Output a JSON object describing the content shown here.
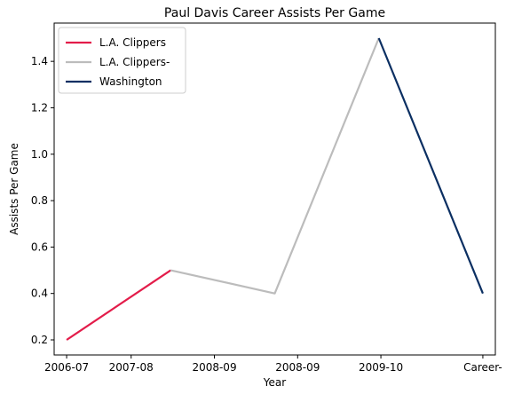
{
  "chart_data": {
    "type": "line",
    "title": "Paul Davis  Career Assists Per Game",
    "xlabel": "Year",
    "ylabel": "Assists Per Game",
    "x_tick_labels": [
      "2006-07",
      "2007-08",
      "2008-09",
      "2008-09",
      "2009-10",
      "Career-"
    ],
    "y_tick_labels": [
      "0.2",
      "0.4",
      "0.6",
      "0.8",
      "1.0",
      "1.2",
      "1.4"
    ],
    "y_ticks": [
      0.2,
      0.4,
      0.6,
      0.8,
      1.0,
      1.2,
      1.4
    ],
    "xlim": [
      -0.12,
      4.12
    ],
    "ylim": [
      0.135,
      1.565
    ],
    "x_tick_positions": [
      0,
      0.62,
      1.42,
      2.22,
      3.02,
      4.0
    ],
    "grid": false,
    "legend_position": "top-left",
    "series": [
      {
        "name": "L.A. Clippers",
        "color": "#e31c4a",
        "x": [
          0,
          1
        ],
        "y": [
          0.2,
          0.5
        ]
      },
      {
        "name": "L.A. Clippers-",
        "color": "#bcbcbc",
        "x": [
          1,
          2,
          3
        ],
        "y": [
          0.5,
          0.4,
          1.5
        ]
      },
      {
        "name": "Washington",
        "color": "#0b2f62",
        "x": [
          3,
          4
        ],
        "y": [
          1.5,
          0.4
        ]
      }
    ]
  }
}
